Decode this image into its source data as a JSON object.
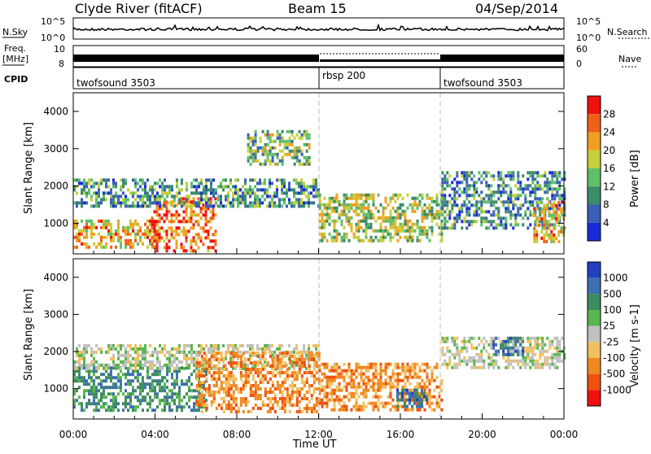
{
  "header": {
    "station": "Clyde River (fitACF)",
    "beam": "Beam 15",
    "date": "04/Sep/2014"
  },
  "strips": {
    "nsky_label": "N.Sky",
    "nsky_ticks": [
      "10^5",
      "10^0"
    ],
    "nsearch_label": "N.Search",
    "nsearch_ticks": [
      "10^5",
      "10^0"
    ],
    "freq_label_1": "Freq.",
    "freq_label_2": "[MHz]",
    "freq_ticks": [
      "10",
      "8"
    ],
    "nave_label": "Nave",
    "nave_ticks": [
      "60",
      "0"
    ],
    "cpid_label": "CPID",
    "cpid_segments": [
      {
        "label": "twofsound 3503",
        "start_hour": 0,
        "end_hour": 12
      },
      {
        "label": "rbsp 200",
        "start_hour": 12,
        "end_hour": 18
      },
      {
        "label": "twofsound 3503",
        "start_hour": 18,
        "end_hour": 24
      }
    ]
  },
  "colors": {
    "power": [
      "#1a2bd6",
      "#3a5fb8",
      "#3b8c68",
      "#5fbf6a",
      "#c7cf3c",
      "#f0a020",
      "#f06018",
      "#f01010"
    ],
    "velocity": [
      "#2440c0",
      "#3e6fb0",
      "#3e8a62",
      "#58b64e",
      "#c0c0c0",
      "#f0c060",
      "#f08a20",
      "#f05010",
      "#f01010"
    ]
  },
  "chart_data": [
    {
      "type": "heatmap",
      "name": "power-panel",
      "xlabel": "Time UT",
      "ylabel": "Slant Range [km]",
      "xlim": [
        0,
        24
      ],
      "ylim": [
        180,
        4500
      ],
      "y_ticks": [
        "1000",
        "2000",
        "3000",
        "4000"
      ],
      "x_ticks": [
        "00:00",
        "04:00",
        "08:00",
        "12:00",
        "16:00",
        "20:00",
        "00:00"
      ],
      "colorbar_label": "Power [dB]",
      "colorbar_ticks": [
        "4",
        "8",
        "12",
        "16",
        "20",
        "24",
        "28"
      ],
      "echo_regions": [
        {
          "t": [
            0.0,
            4.0
          ],
          "r": [
            400,
            1100
          ],
          "dB": 22
        },
        {
          "t": [
            3.8,
            7.0
          ],
          "r": [
            250,
            1700
          ],
          "dB": 27
        },
        {
          "t": [
            0.0,
            12.0
          ],
          "r": [
            1500,
            2200
          ],
          "dB": 10
        },
        {
          "t": [
            8.5,
            11.5
          ],
          "r": [
            2600,
            3500
          ],
          "dB": 14
        },
        {
          "t": [
            12.0,
            18.0
          ],
          "r": [
            500,
            1800
          ],
          "dB": 16
        },
        {
          "t": [
            18.0,
            24.0
          ],
          "r": [
            900,
            2400
          ],
          "dB": 9
        },
        {
          "t": [
            22.5,
            24.0
          ],
          "r": [
            500,
            1600
          ],
          "dB": 22
        }
      ]
    },
    {
      "type": "heatmap",
      "name": "velocity-panel",
      "xlabel": "Time UT",
      "ylabel": "Slant Range [km]",
      "xlim": [
        0,
        24
      ],
      "ylim": [
        180,
        4500
      ],
      "y_ticks": [
        "1000",
        "2000",
        "3000",
        "4000"
      ],
      "x_ticks": [
        "00:00",
        "04:00",
        "08:00",
        "12:00",
        "16:00",
        "20:00",
        "00:00"
      ],
      "colorbar_label": "Velocity [m s-1]",
      "colorbar_ticks": [
        "1000",
        "500",
        "100",
        "25",
        "-25",
        "-100",
        "-500",
        "-1000"
      ],
      "echo_regions": [
        {
          "t": [
            0.0,
            6.5
          ],
          "r": [
            400,
            1600
          ],
          "ms": 150
        },
        {
          "t": [
            0.0,
            12.0
          ],
          "r": [
            1500,
            2200
          ],
          "ms": 0
        },
        {
          "t": [
            6.0,
            12.0
          ],
          "r": [
            400,
            2000
          ],
          "ms": -200
        },
        {
          "t": [
            12.0,
            18.0
          ],
          "r": [
            400,
            1700
          ],
          "ms": -200
        },
        {
          "t": [
            15.8,
            17.3
          ],
          "r": [
            500,
            1000
          ],
          "ms": 600
        },
        {
          "t": [
            18.0,
            24.0
          ],
          "r": [
            1600,
            2400
          ],
          "ms": 0
        },
        {
          "t": [
            20.5,
            22.0
          ],
          "r": [
            1900,
            2400
          ],
          "ms": 700
        }
      ]
    }
  ]
}
